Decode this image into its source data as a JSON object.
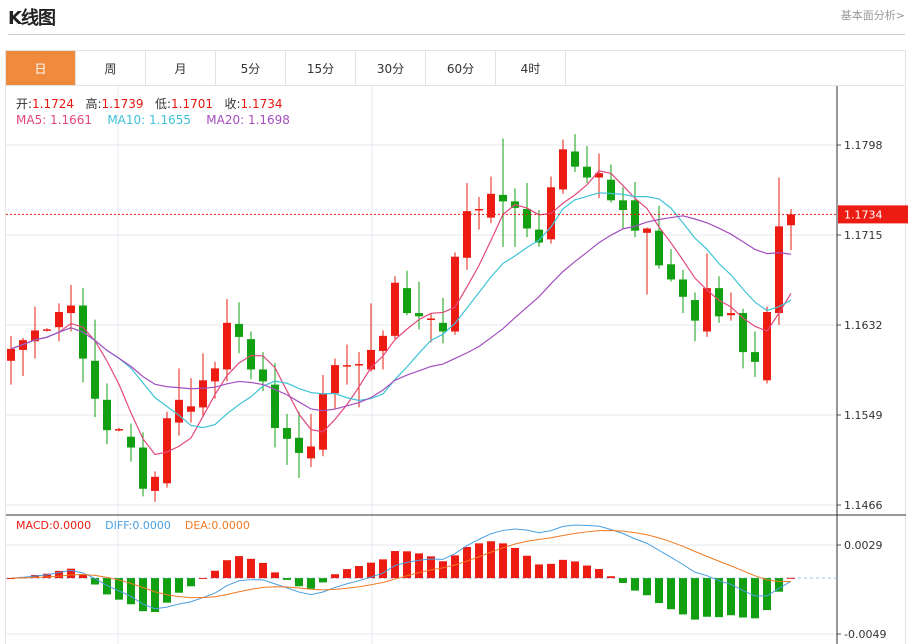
{
  "header": {
    "title": "K线图",
    "link": "基本面分析>"
  },
  "tabs": [
    {
      "label": "日",
      "active": true
    },
    {
      "label": "周"
    },
    {
      "label": "月"
    },
    {
      "label": "5分"
    },
    {
      "label": "15分"
    },
    {
      "label": "30分"
    },
    {
      "label": "60分"
    },
    {
      "label": "4时"
    }
  ],
  "ohlc_legend": {
    "open_label": "开:",
    "open": "1.1724",
    "high_label": "高:",
    "high": "1.1739",
    "low_label": "低:",
    "low": "1.1701",
    "close_label": "收:",
    "close": "1.1734"
  },
  "ma_legend": {
    "ma5": "MA5: 1.1661",
    "ma10": "MA10: 1.1655",
    "ma20": "MA20: 1.1698"
  },
  "macd_legend": {
    "macd": "MACD:0.0000",
    "diff": "DIFF:0.0000",
    "dea": "DEA:0.0000"
  },
  "colors": {
    "up": "#ec1c12",
    "down": "#12a012",
    "ma5": "#e2487c",
    "ma10": "#3ec3d6",
    "ma20": "#a44fbf",
    "diff": "#4a9fe0",
    "dea": "#f07a22",
    "accent": "#f08a3c"
  },
  "chart_data": [
    {
      "type": "candlestick",
      "title": "",
      "y_ticks": [
        "1.1798",
        "1.1715",
        "1.1632",
        "1.1549",
        "1.1466"
      ],
      "ylim": [
        1.1466,
        1.1798
      ],
      "current_price": "1.1734",
      "grid": true,
      "ohlc": [
        [
          1.1599,
          1.1622,
          1.1577,
          1.161
        ],
        [
          1.1609,
          1.162,
          1.1585,
          1.1618
        ],
        [
          1.1617,
          1.1649,
          1.1601,
          1.1627
        ],
        [
          1.1627,
          1.1629,
          1.1626,
          1.1628
        ],
        [
          1.163,
          1.1652,
          1.1617,
          1.1644
        ],
        [
          1.1643,
          1.1669,
          1.1626,
          1.165
        ],
        [
          1.165,
          1.1666,
          1.1579,
          1.1601
        ],
        [
          1.1599,
          1.1637,
          1.1547,
          1.1564
        ],
        [
          1.1563,
          1.1578,
          1.1522,
          1.1535
        ],
        [
          1.1535,
          1.1537,
          1.1534,
          1.1536
        ],
        [
          1.1529,
          1.1541,
          1.1506,
          1.1519
        ],
        [
          1.1519,
          1.1533,
          1.1474,
          1.1481
        ],
        [
          1.1479,
          1.1497,
          1.1469,
          1.1492
        ],
        [
          1.1486,
          1.1552,
          1.1482,
          1.1546
        ],
        [
          1.1542,
          1.1592,
          1.153,
          1.1563
        ],
        [
          1.1552,
          1.1583,
          1.1542,
          1.1557
        ],
        [
          1.1556,
          1.1606,
          1.1547,
          1.1581
        ],
        [
          1.158,
          1.1598,
          1.1564,
          1.1592
        ],
        [
          1.1591,
          1.1656,
          1.158,
          1.1634
        ],
        [
          1.1633,
          1.1653,
          1.1606,
          1.1621
        ],
        [
          1.1619,
          1.1626,
          1.1582,
          1.1591
        ],
        [
          1.1591,
          1.1607,
          1.1571,
          1.158
        ],
        [
          1.1577,
          1.1597,
          1.1519,
          1.1537
        ],
        [
          1.1537,
          1.155,
          1.1503,
          1.1527
        ],
        [
          1.1528,
          1.1552,
          1.1491,
          1.1514
        ],
        [
          1.1509,
          1.155,
          1.1501,
          1.152
        ],
        [
          1.1517,
          1.1586,
          1.1511,
          1.1569
        ],
        [
          1.1569,
          1.1601,
          1.1554,
          1.1595
        ],
        [
          1.1594,
          1.1614,
          1.1577,
          1.1595
        ],
        [
          1.1595,
          1.1607,
          1.1556,
          1.1596
        ],
        [
          1.1591,
          1.1652,
          1.1589,
          1.1609
        ],
        [
          1.1608,
          1.1627,
          1.1591,
          1.1622
        ],
        [
          1.1622,
          1.1677,
          1.1618,
          1.1671
        ],
        [
          1.1666,
          1.1682,
          1.1641,
          1.1643
        ],
        [
          1.1643,
          1.1672,
          1.1628,
          1.164
        ],
        [
          1.1637,
          1.1643,
          1.1616,
          1.1638
        ],
        [
          1.1634,
          1.1657,
          1.1615,
          1.1626
        ],
        [
          1.1626,
          1.1699,
          1.1623,
          1.1695
        ],
        [
          1.1694,
          1.1763,
          1.1683,
          1.1737
        ],
        [
          1.1738,
          1.175,
          1.172,
          1.1739
        ],
        [
          1.1731,
          1.1769,
          1.1726,
          1.1753
        ],
        [
          1.1752,
          1.1804,
          1.1704,
          1.1746
        ],
        [
          1.1746,
          1.1758,
          1.1704,
          1.174
        ],
        [
          1.1739,
          1.1763,
          1.1713,
          1.1721
        ],
        [
          1.172,
          1.1738,
          1.1704,
          1.1708
        ],
        [
          1.1711,
          1.1769,
          1.1707,
          1.1759
        ],
        [
          1.1757,
          1.1803,
          1.1753,
          1.1794
        ],
        [
          1.1792,
          1.1808,
          1.1773,
          1.1778
        ],
        [
          1.1778,
          1.1797,
          1.1763,
          1.1768
        ],
        [
          1.1768,
          1.179,
          1.1749,
          1.1772
        ],
        [
          1.1766,
          1.178,
          1.1745,
          1.1747
        ],
        [
          1.1747,
          1.1759,
          1.1721,
          1.1738
        ],
        [
          1.1747,
          1.1764,
          1.1713,
          1.1719
        ],
        [
          1.1717,
          1.1722,
          1.166,
          1.1721
        ],
        [
          1.1719,
          1.1742,
          1.1684,
          1.1687
        ],
        [
          1.1688,
          1.1702,
          1.1672,
          1.1674
        ],
        [
          1.1674,
          1.1683,
          1.1643,
          1.1658
        ],
        [
          1.1655,
          1.1662,
          1.1617,
          1.1636
        ],
        [
          1.1626,
          1.1698,
          1.1621,
          1.1666
        ],
        [
          1.1666,
          1.1677,
          1.1634,
          1.164
        ],
        [
          1.1641,
          1.1662,
          1.1636,
          1.1643
        ],
        [
          1.1643,
          1.1647,
          1.1592,
          1.1607
        ],
        [
          1.1607,
          1.1626,
          1.1584,
          1.1598
        ],
        [
          1.1581,
          1.1649,
          1.1578,
          1.1644
        ],
        [
          1.1643,
          1.1768,
          1.1632,
          1.1723
        ],
        [
          1.1724,
          1.1739,
          1.1701,
          1.1734
        ]
      ],
      "series": [
        {
          "name": "MA5"
        },
        {
          "name": "MA10"
        },
        {
          "name": "MA20"
        }
      ]
    },
    {
      "type": "bar",
      "title": "",
      "y_ticks": [
        "0.0029",
        "-0.0049"
      ],
      "ylim": [
        -0.0049,
        0.0029
      ],
      "series": [
        {
          "name": "MACD"
        },
        {
          "name": "DIFF"
        },
        {
          "name": "DEA"
        }
      ]
    }
  ]
}
